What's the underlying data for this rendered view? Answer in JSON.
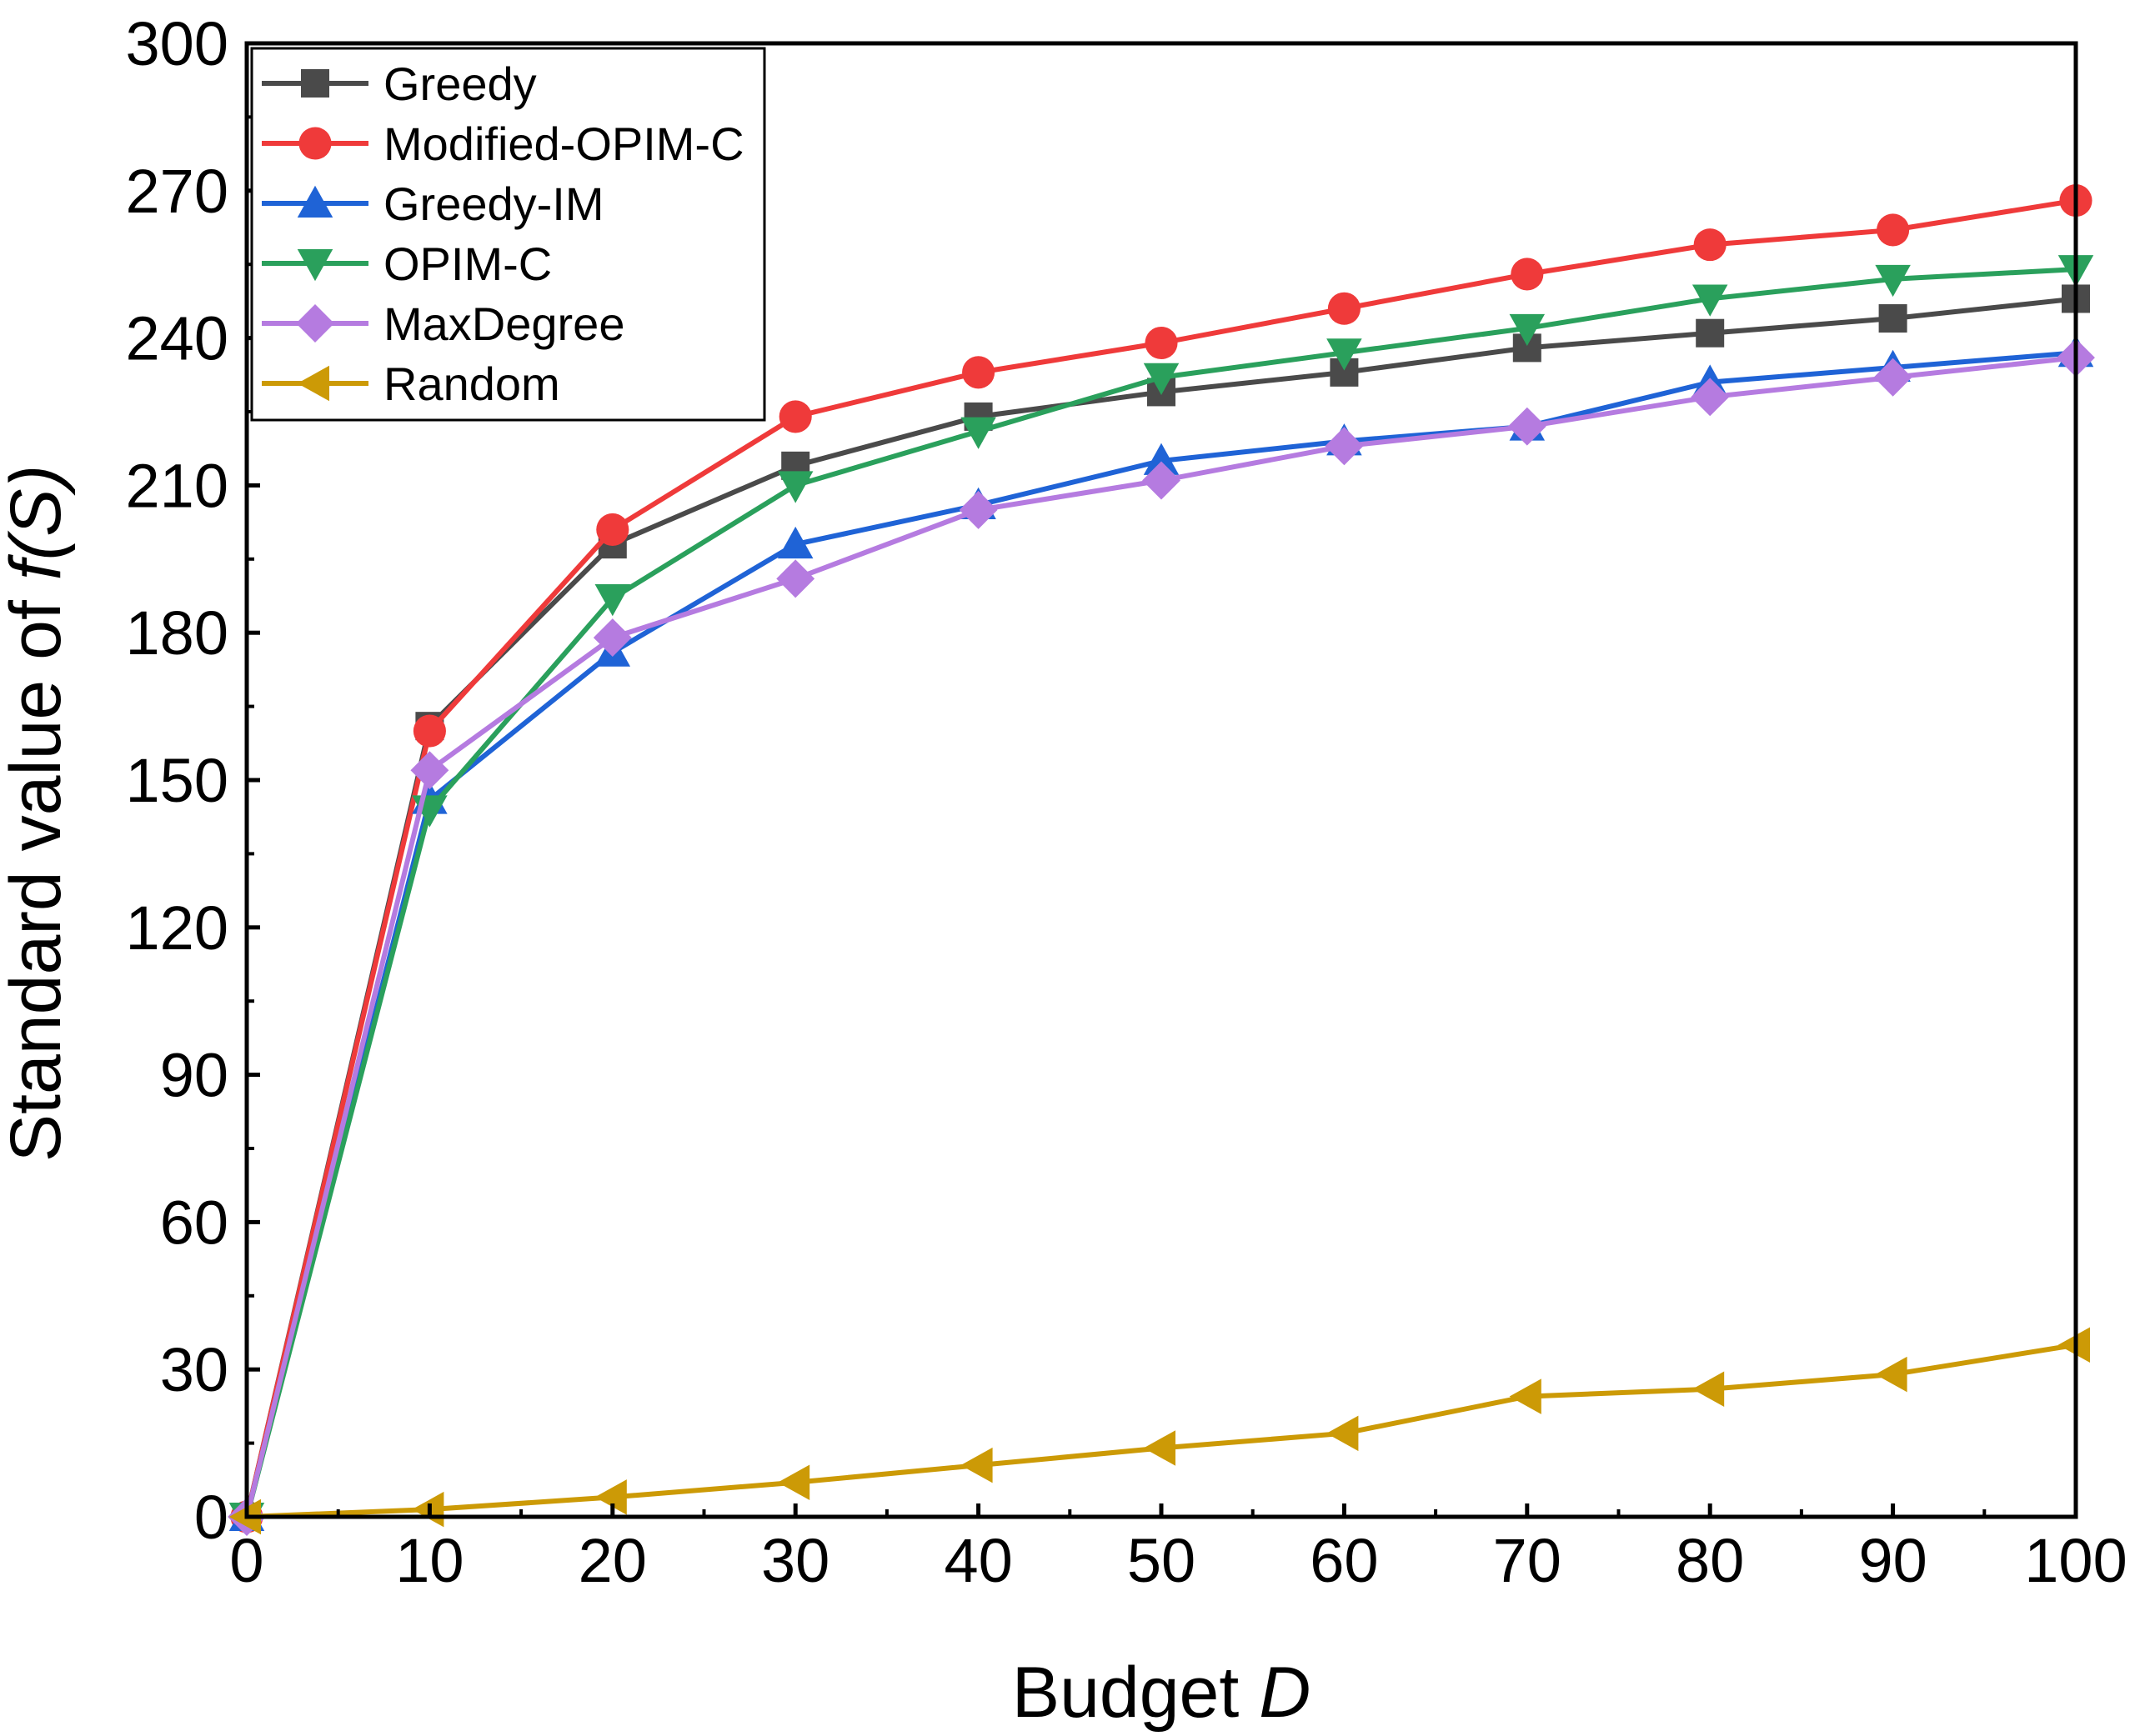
{
  "chart_data": {
    "type": "line",
    "title": "",
    "xlabel": "Budget",
    "xlabel_var": "D",
    "ylabel": "Standard value of",
    "ylabel_var": "f(S)",
    "xlim": [
      0,
      100
    ],
    "ylim": [
      0,
      300
    ],
    "xticks": [
      0,
      10,
      20,
      30,
      40,
      50,
      60,
      70,
      80,
      90,
      100
    ],
    "yticks": [
      0,
      30,
      60,
      90,
      120,
      150,
      180,
      210,
      240,
      270,
      300
    ],
    "legend_position": "top-left",
    "x": [
      0,
      10,
      20,
      30,
      40,
      50,
      60,
      70,
      80,
      90,
      100
    ],
    "series": [
      {
        "name": "Greedy",
        "color": "#4a4a4a",
        "marker": "square",
        "values": [
          0,
          161,
          198,
          214,
          224,
          229,
          233,
          238,
          241,
          244,
          248
        ]
      },
      {
        "name": "Modified-OPIM-C",
        "color": "#ef3a3a",
        "marker": "circle",
        "values": [
          0,
          160,
          201,
          224,
          233,
          239,
          246,
          253,
          259,
          262,
          268
        ]
      },
      {
        "name": "Greedy-IM",
        "color": "#1f63d6",
        "marker": "triangle-up",
        "values": [
          0,
          146,
          176,
          198,
          206,
          215,
          219,
          222,
          231,
          234,
          237
        ]
      },
      {
        "name": "OPIM-C",
        "color": "#2aa05c",
        "marker": "triangle-down",
        "values": [
          0,
          144,
          187,
          210,
          221,
          232,
          237,
          242,
          248,
          252,
          254
        ]
      },
      {
        "name": "MaxDegree",
        "color": "#b57be0",
        "marker": "diamond",
        "values": [
          0,
          152,
          179,
          191,
          205,
          211,
          218,
          222,
          228,
          232,
          236
        ]
      },
      {
        "name": "Random",
        "color": "#cc9a06",
        "marker": "triangle-left",
        "values": [
          0,
          1.5,
          4,
          7,
          10.5,
          14,
          17,
          24.5,
          26,
          29,
          35
        ]
      }
    ]
  }
}
